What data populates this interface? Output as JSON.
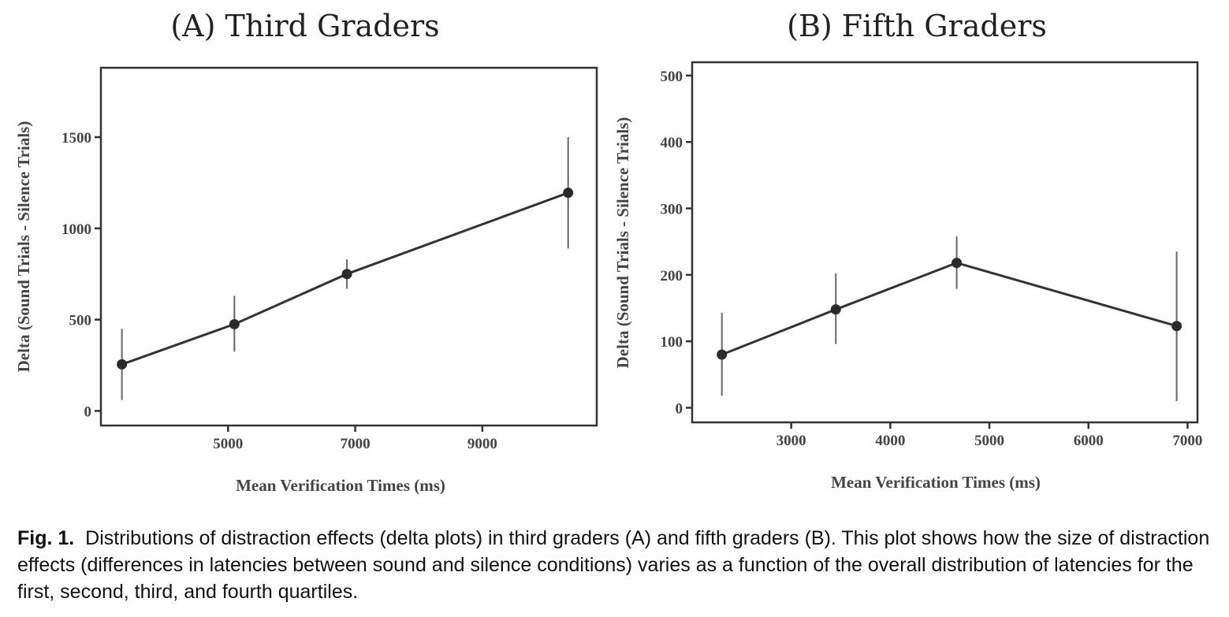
{
  "chart_data": [
    {
      "type": "line",
      "title": "(A) Third Graders",
      "xlabel": "Mean Verification Times (ms)",
      "ylabel": "Delta (Sound Trials - Silence Trials)",
      "xlim": [
        3000,
        10800
      ],
      "ylim": [
        -80,
        1880
      ],
      "xticks": [
        5000,
        7000,
        9000
      ],
      "yticks": [
        0,
        500,
        1000,
        1500
      ],
      "grid": false,
      "series": [
        {
          "x": [
            3330,
            5100,
            6870,
            10350
          ],
          "y": [
            255,
            475,
            750,
            1195
          ],
          "err_low": [
            60,
            325,
            670,
            890
          ],
          "err_high": [
            450,
            630,
            830,
            1500
          ]
        }
      ]
    },
    {
      "type": "line",
      "title": "(B) Fifth Graders",
      "xlabel": "Mean Verification Times (ms)",
      "ylabel": "Delta (Sound Trials - Silence Trials)",
      "xlim": [
        2000,
        7100
      ],
      "ylim": [
        -22,
        520
      ],
      "xticks": [
        3000,
        4000,
        5000,
        6000,
        7000
      ],
      "yticks": [
        0,
        100,
        200,
        300,
        400,
        500
      ],
      "grid": false,
      "series": [
        {
          "x": [
            2300,
            3450,
            4670,
            6890
          ],
          "y": [
            80,
            148,
            218,
            123
          ],
          "err_low": [
            18,
            96,
            179,
            10
          ],
          "err_high": [
            143,
            202,
            258,
            235
          ]
        }
      ]
    }
  ],
  "caption": {
    "label": "Fig. 1.",
    "text": "Distributions of distraction effects (delta plots) in third graders (A) and fifth graders (B). This plot shows how the size of distraction effects (differences in latencies between sound and silence conditions) varies as a function of the overall distribution of latencies for the first, second, third, and fourth quartiles."
  }
}
